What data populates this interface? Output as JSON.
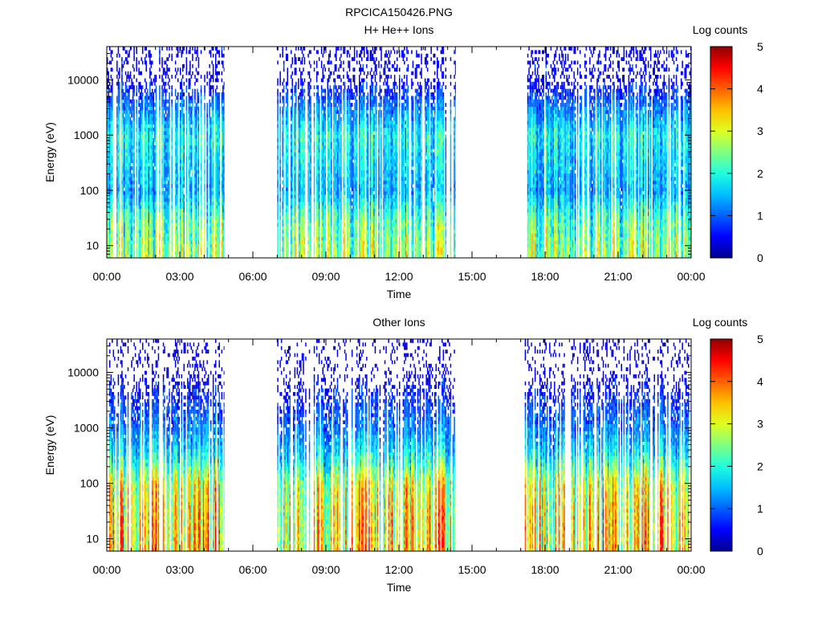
{
  "figure_title": "RPCICA150426.PNG",
  "colors": {
    "colormap": [
      "#00008f",
      "#0000ff",
      "#0060ff",
      "#00bfff",
      "#20ffdf",
      "#80ff80",
      "#dfff20",
      "#ffbf00",
      "#ff6000",
      "#ff0000",
      "#8f0000"
    ]
  },
  "chart_data": [
    {
      "type": "heatmap",
      "title": "H+ He++ Ions",
      "xlabel": "Time",
      "ylabel": "Energy (eV)",
      "y_scale": "log",
      "ylim": [
        6,
        40000
      ],
      "xlim_hours": [
        0,
        24
      ],
      "x_ticks": [
        "00:00",
        "03:00",
        "06:00",
        "09:00",
        "12:00",
        "15:00",
        "18:00",
        "21:00",
        "00:00"
      ],
      "y_ticks": [
        "10",
        "100",
        "1000",
        "10000"
      ],
      "colorbar": {
        "label": "Log counts",
        "range": [
          0,
          5
        ],
        "ticks": [
          "0",
          "1",
          "2",
          "3",
          "4",
          "5"
        ]
      },
      "data_intervals": [
        {
          "start": "00:00",
          "end": "04:50"
        },
        {
          "start": "07:00",
          "end": "14:20"
        },
        {
          "start": "17:10",
          "end": "24:00"
        }
      ],
      "intensity_profile": [
        {
          "energy": 8,
          "log_counts": 2.8
        },
        {
          "energy": 30,
          "log_counts": 2.4
        },
        {
          "energy": 100,
          "log_counts": 1.5
        },
        {
          "energy": 1000,
          "log_counts": 2.0
        },
        {
          "energy": 10000,
          "log_counts": 0.4
        }
      ]
    },
    {
      "type": "heatmap",
      "title": "Other Ions",
      "xlabel": "Time",
      "ylabel": "Energy (eV)",
      "y_scale": "log",
      "ylim": [
        6,
        40000
      ],
      "xlim_hours": [
        0,
        24
      ],
      "x_ticks": [
        "00:00",
        "03:00",
        "06:00",
        "09:00",
        "12:00",
        "15:00",
        "18:00",
        "21:00",
        "00:00"
      ],
      "y_ticks": [
        "10",
        "100",
        "1000",
        "10000"
      ],
      "colorbar": {
        "label": "Log counts",
        "range": [
          0,
          5
        ],
        "ticks": [
          "0",
          "1",
          "2",
          "3",
          "4",
          "5"
        ]
      },
      "data_intervals": [
        {
          "start": "00:00",
          "end": "04:50"
        },
        {
          "start": "07:00",
          "end": "14:20"
        },
        {
          "start": "17:10",
          "end": "24:00"
        }
      ],
      "intensity_profile": [
        {
          "energy": 8,
          "log_counts": 3.6
        },
        {
          "energy": 30,
          "log_counts": 3.5
        },
        {
          "energy": 100,
          "log_counts": 3.2
        },
        {
          "energy": 300,
          "log_counts": 2.0
        },
        {
          "energy": 1000,
          "log_counts": 1.2
        },
        {
          "energy": 10000,
          "log_counts": 0.3
        }
      ]
    }
  ]
}
